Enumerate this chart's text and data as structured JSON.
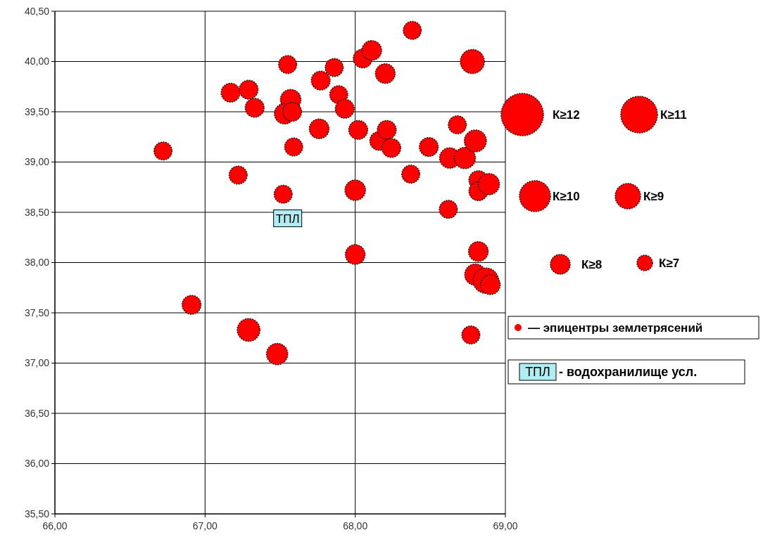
{
  "chart_data": {
    "type": "bubble",
    "xlim": [
      66,
      69
    ],
    "ylim": [
      35.5,
      40.5
    ],
    "xticks": [
      {
        "value": 66,
        "label": "66,00"
      },
      {
        "value": 67,
        "label": "67,00"
      },
      {
        "value": 68,
        "label": "68,00"
      },
      {
        "value": 69,
        "label": "69,00"
      }
    ],
    "yticks": [
      {
        "value": 35.5,
        "label": "35,50"
      },
      {
        "value": 36,
        "label": "36,00"
      },
      {
        "value": 36.5,
        "label": "36,50"
      },
      {
        "value": 37,
        "label": "37,00"
      },
      {
        "value": 37.5,
        "label": "37,50"
      },
      {
        "value": 38,
        "label": "38,00"
      },
      {
        "value": 38.5,
        "label": "38,50"
      },
      {
        "value": 39,
        "label": "39,00"
      },
      {
        "value": 39.5,
        "label": "39,50"
      },
      {
        "value": 40,
        "label": "40,00"
      },
      {
        "value": 40.5,
        "label": "40,50"
      }
    ],
    "grid": true,
    "legend": "right",
    "series": [
      {
        "name": "— эпицентры землетрясений",
        "color": "#ff0000",
        "x": [
          66.72,
          67.17,
          67.29,
          67.33,
          67.22,
          67.52,
          67.55,
          67.57,
          67.53,
          67.58,
          67.59,
          67.77,
          67.86,
          67.89,
          67.76,
          67.93,
          68.05,
          68.11,
          68.2,
          68.02,
          68.0,
          68.16,
          68.21,
          68.24,
          68.38,
          68.37,
          68.49,
          68.68,
          68.63,
          68.73,
          68.78,
          68.8,
          68.82,
          68.82,
          68.89,
          68.62,
          68.0,
          68.82,
          68.8,
          68.87,
          68.9,
          68.77,
          66.91,
          67.29,
          67.48
        ],
        "values": [
          39.11,
          39.69,
          39.72,
          39.54,
          38.87,
          38.68,
          39.97,
          39.62,
          39.48,
          39.5,
          39.15,
          39.81,
          39.94,
          39.67,
          39.33,
          39.53,
          40.03,
          40.11,
          39.88,
          39.32,
          38.72,
          39.21,
          39.32,
          39.14,
          40.31,
          38.88,
          39.15,
          39.37,
          39.04,
          39.04,
          40.0,
          39.21,
          38.82,
          38.71,
          38.78,
          38.53,
          38.08,
          38.11,
          37.88,
          37.82,
          37.78,
          37.28,
          37.58,
          37.33,
          37.09
        ],
        "sizes": [
          0.5,
          0.55,
          0.55,
          0.55,
          0.5,
          0.5,
          0.5,
          0.65,
          0.65,
          0.55,
          0.5,
          0.55,
          0.5,
          0.5,
          0.6,
          0.55,
          0.55,
          0.6,
          0.6,
          0.55,
          0.65,
          0.55,
          0.55,
          0.55,
          0.5,
          0.5,
          0.55,
          0.5,
          0.65,
          0.7,
          0.9,
          0.75,
          0.55,
          0.55,
          0.7,
          0.5,
          0.6,
          0.6,
          0.7,
          1,
          0.6,
          0.5,
          0.55,
          0.8,
          0.7
        ]
      }
    ],
    "annotations": [
      {
        "text": "ТПЛ",
        "x": 67.55,
        "y": 38.44
      },
      "К≥12",
      "К≥11",
      "К≥10",
      "К≥9",
      "К≥8",
      "К≥7",
      "ТПЛ",
      "- водохранилище усл."
    ]
  }
}
